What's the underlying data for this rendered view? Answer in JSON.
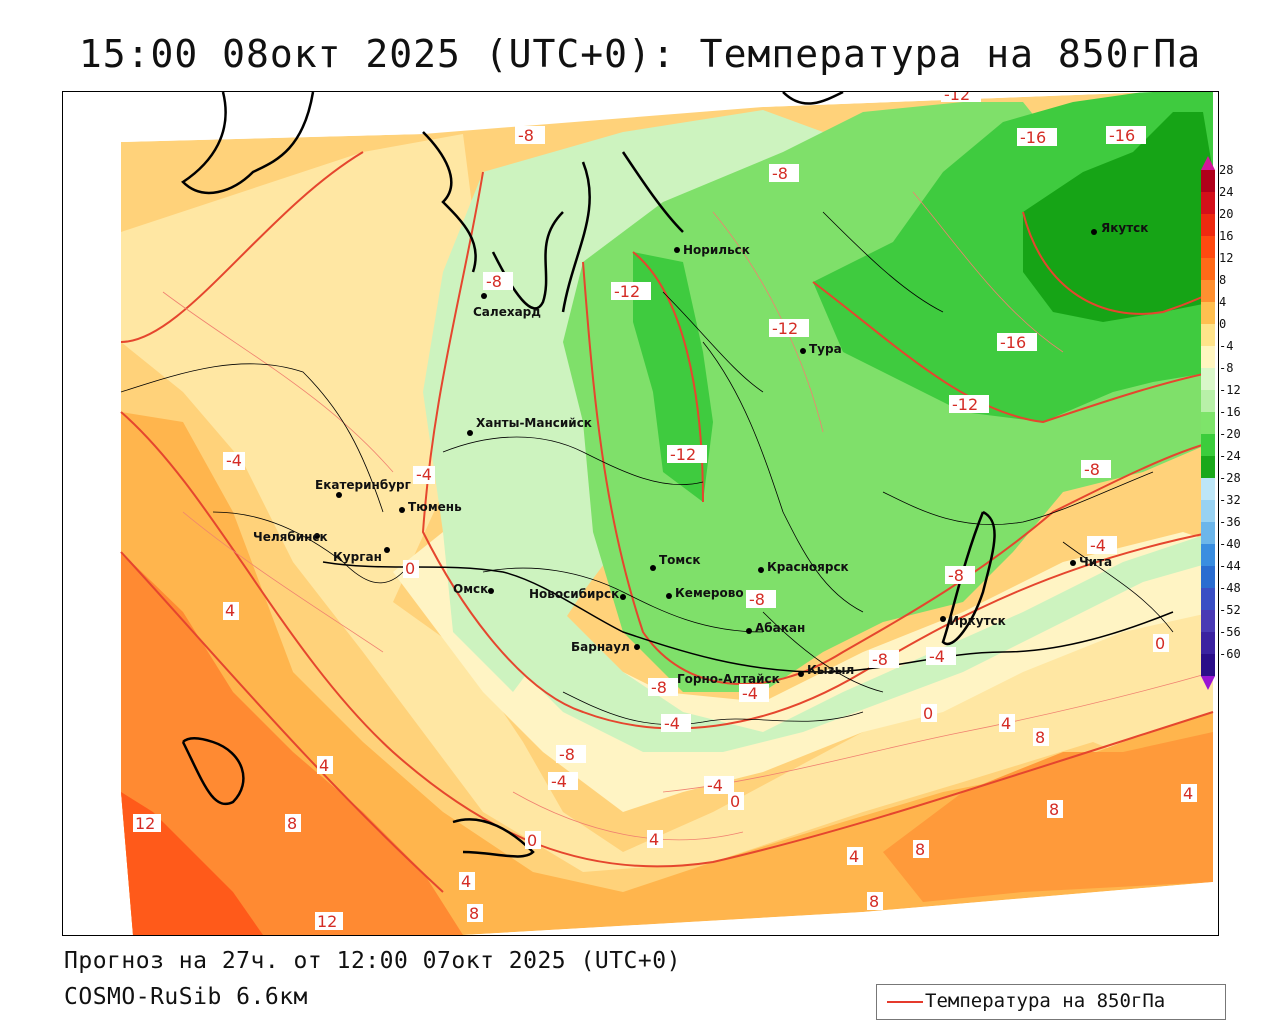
{
  "title": "15:00 08окт 2025 (UTC+0): Температура на 850гПа",
  "footer": {
    "forecast": "Прогноз на 27ч. от 12:00 07окт 2025 (UTC+0)",
    "model": "COSMO-RuSib 6.6км"
  },
  "legend": {
    "label": "Температура на 850гПа",
    "line_color": "#e53a2c"
  },
  "colorbar": {
    "levels": [
      "28",
      "24",
      "20",
      "16",
      "12",
      "8",
      "4",
      "0",
      "-4",
      "-8",
      "-12",
      "-16",
      "-20",
      "-24",
      "-28",
      "-32",
      "-36",
      "-40",
      "-44",
      "-48",
      "-52",
      "-56",
      "-60"
    ],
    "colors": [
      "#b0001a",
      "#d4101a",
      "#ee2a10",
      "#ff4a10",
      "#ff6a18",
      "#ff9030",
      "#ffc050",
      "#ffe48a",
      "#fff6c0",
      "#d9f7c9",
      "#b8f0a8",
      "#7ee46a",
      "#3ccd3c",
      "#1aa81a",
      "#bde6f7",
      "#98d2f2",
      "#6cb6ea",
      "#3a8ee0",
      "#2a6dd0",
      "#3a4fc4",
      "#4a3ab4",
      "#3b22a0",
      "#2a0e88"
    ],
    "top_arrow_color": "#d4169a",
    "bottom_arrow_color": "#9a14d4"
  },
  "cities": [
    {
      "name": "Норильск"
    },
    {
      "name": "Салехард"
    },
    {
      "name": "Тура"
    },
    {
      "name": "Якутск"
    },
    {
      "name": "Ханты-Мансийск"
    },
    {
      "name": "Екатеринбург"
    },
    {
      "name": "Тюмень"
    },
    {
      "name": "Челябинск"
    },
    {
      "name": "Курган"
    },
    {
      "name": "Омск"
    },
    {
      "name": "Новосибирск"
    },
    {
      "name": "Томск"
    },
    {
      "name": "Красноярск"
    },
    {
      "name": "Кемерово"
    },
    {
      "name": "Абакан"
    },
    {
      "name": "Барнаул"
    },
    {
      "name": "Горно-Алтайск"
    },
    {
      "name": "Кызыл"
    },
    {
      "name": "Иркутск"
    },
    {
      "name": "Чита"
    }
  ],
  "contour_labels": [
    "-8",
    "-8",
    "-8",
    "-8",
    "-12",
    "-12",
    "-12",
    "-12",
    "-16",
    "-16",
    "-16",
    "-12",
    "-8",
    "-4",
    "-4",
    "-8",
    "-8",
    "-4",
    "-4",
    "-4",
    "-4",
    "-8",
    "-8",
    "-4",
    "-4",
    "0",
    "0",
    "0",
    "0",
    "0",
    "4",
    "4",
    "4",
    "4",
    "4",
    "4",
    "4",
    "8",
    "8",
    "8",
    "8",
    "8",
    "8",
    "12",
    "12"
  ]
}
